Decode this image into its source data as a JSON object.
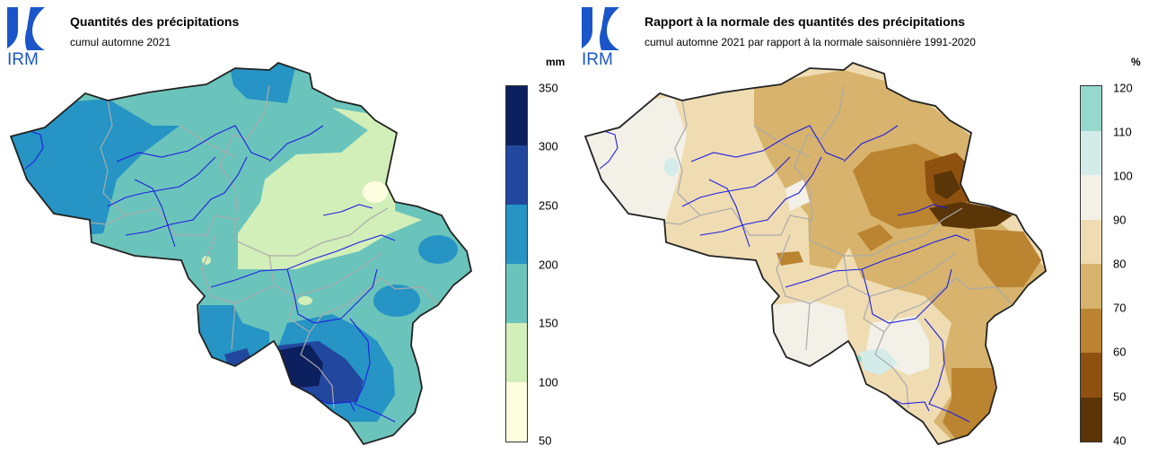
{
  "left": {
    "logo_text": "IRM",
    "title": "Quantités des précipitations",
    "subtitle": "cumul automne 2021",
    "unit": "mm",
    "legend_ticks": [
      "350",
      "300",
      "250",
      "200",
      "150",
      "100",
      "50"
    ],
    "legend_colors": [
      "#0c1f5e",
      "#22479e",
      "#2694c4",
      "#6bc4bb",
      "#d3efb9",
      "#fdfde0"
    ],
    "colors": {
      "c250": "#2694c4",
      "c200": "#6bc4bb",
      "c150": "#d3efb9",
      "c100": "#fdfde0",
      "c300": "#22479e",
      "c350": "#0c1f5e"
    }
  },
  "right": {
    "logo_text": "IRM",
    "title": "Rapport à la normale des quantités des précipitations",
    "subtitle": "cumul automne 2021 par rapport à la normale saisonnière 1991-2020",
    "unit": "%",
    "legend_ticks": [
      "120",
      "110",
      "100",
      "90",
      "80",
      "70",
      "60",
      "50",
      "40"
    ],
    "legend_colors": [
      "#96d8cb",
      "#d3ecea",
      "#f3f0e7",
      "#efdcb2",
      "#d7b36d",
      "#bb8431",
      "#8f510f",
      "#5a3507"
    ],
    "colors": {
      "c90": "#f3f0e7",
      "c80": "#efdcb2",
      "c70": "#d7b36d",
      "c60": "#bb8431",
      "c50": "#8f510f",
      "c40": "#5a3507",
      "c110": "#d3ecea",
      "c120": "#96d8cb"
    }
  },
  "colors": {
    "logo_blue": "#1a56c9",
    "border": "#222222",
    "river": "#1e1ee0",
    "province": "#aaaaaa"
  }
}
